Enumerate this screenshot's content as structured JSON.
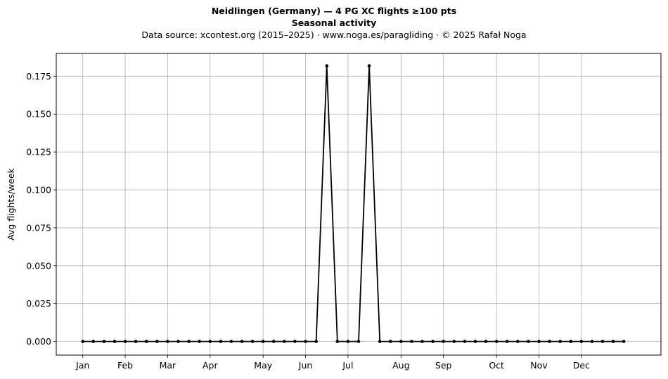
{
  "chart_data": {
    "type": "line",
    "title": "Neidlingen (Germany)  —  4 PG XC flights ≥100 pts",
    "subtitle": "Seasonal activity",
    "source": "Data source: xcontest.org (2015–2025)  ·  www.noga.es/paragliding  ·  © 2025 Rafał Noga",
    "ylabel": "Avg flights/week",
    "xlabel": "",
    "x_ticks": [
      {
        "label": "Jan",
        "week": 1
      },
      {
        "label": "Feb",
        "week": 5
      },
      {
        "label": "Mar",
        "week": 9
      },
      {
        "label": "Apr",
        "week": 13
      },
      {
        "label": "May",
        "week": 18
      },
      {
        "label": "Jun",
        "week": 22
      },
      {
        "label": "Jul",
        "week": 26
      },
      {
        "label": "Aug",
        "week": 31
      },
      {
        "label": "Sep",
        "week": 35
      },
      {
        "label": "Oct",
        "week": 40
      },
      {
        "label": "Nov",
        "week": 44
      },
      {
        "label": "Dec",
        "week": 48
      }
    ],
    "y_ticks": [
      "0.000",
      "0.025",
      "0.050",
      "0.075",
      "0.100",
      "0.125",
      "0.150",
      "0.175"
    ],
    "xlim": [
      -1.5,
      55.5
    ],
    "ylim": [
      -0.009,
      0.19
    ],
    "grid": true,
    "line_color": "#000000",
    "series": [
      {
        "x": [
          1,
          2,
          3,
          4,
          5,
          6,
          7,
          8,
          9,
          10,
          11,
          12,
          13,
          14,
          15,
          16,
          17,
          18,
          19,
          20,
          21,
          22,
          23,
          24,
          25,
          26,
          27,
          28,
          29,
          30,
          31,
          32,
          33,
          34,
          35,
          36,
          37,
          38,
          39,
          40,
          41,
          42,
          43,
          44,
          45,
          46,
          47,
          48,
          49,
          50,
          51,
          52
        ],
        "values": [
          0,
          0,
          0,
          0,
          0,
          0,
          0,
          0,
          0,
          0,
          0,
          0,
          0,
          0,
          0,
          0,
          0,
          0,
          0,
          0,
          0,
          0,
          0,
          0.1818,
          0,
          0,
          0,
          0.1818,
          0,
          0,
          0,
          0,
          0,
          0,
          0,
          0,
          0,
          0,
          0,
          0,
          0,
          0,
          0,
          0,
          0,
          0,
          0,
          0,
          0,
          0,
          0,
          0
        ]
      }
    ]
  }
}
